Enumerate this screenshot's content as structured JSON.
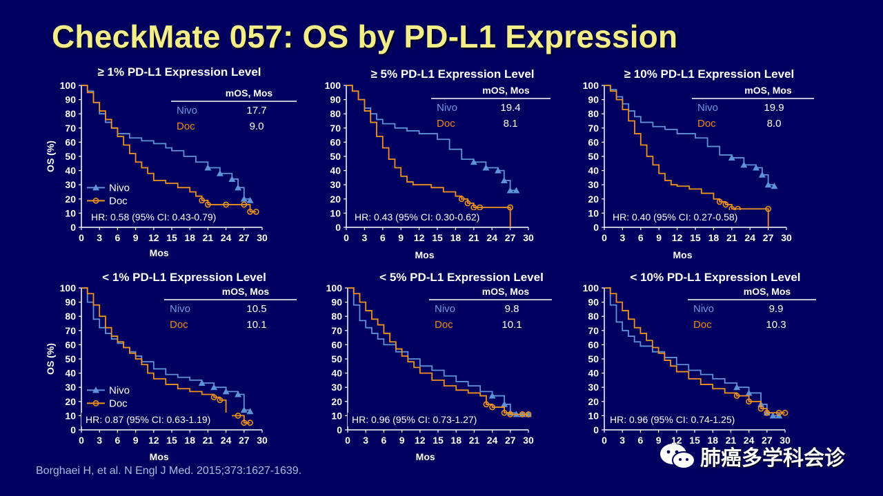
{
  "title": "CheckMate 057: OS by PD-L1 Expression",
  "citation": "Borghaei H, et al. N Engl J Med. 2015;373:1627-1639.",
  "watermark": {
    "text": "肺癌多学科会诊",
    "icon": "wechat-icon"
  },
  "colors": {
    "background": "#00005f",
    "title": "#f4ee8a",
    "nivo": "#5f93d6",
    "doc": "#f0921e",
    "table_nivo": "#6f9ae0",
    "table_doc": "#f08a1a"
  },
  "chart_data": [
    {
      "type": "line",
      "title": "≥ 1% PD-L1 Expression Level",
      "xlabel": "Mos",
      "ylabel": "OS (%)",
      "xlim": [
        0,
        30
      ],
      "ylim": [
        0,
        100
      ],
      "xticks": [
        0,
        3,
        6,
        9,
        12,
        15,
        18,
        21,
        24,
        27,
        30
      ],
      "yticks": [
        0,
        10,
        20,
        30,
        40,
        50,
        60,
        70,
        80,
        90,
        100
      ],
      "legend": {
        "show": true,
        "placement": "lower-left"
      },
      "table": {
        "header": "mOS, Mos",
        "rows": [
          {
            "label": "Nivo",
            "value": "17.7"
          },
          {
            "label": "Doc",
            "value": "9.0"
          }
        ]
      },
      "hr": "HR: 0.58 (95% CI: 0.43-0.79)",
      "series": [
        {
          "name": "Nivo",
          "color": "#5f93d6",
          "marker": "triangle",
          "x": [
            0,
            1,
            2,
            3,
            4,
            5,
            6,
            8,
            10,
            12,
            14,
            15,
            17,
            19,
            21,
            23,
            25,
            26,
            27,
            28
          ],
          "y": [
            100,
            96,
            88,
            80,
            74,
            70,
            66,
            63,
            61,
            59,
            56,
            54,
            50,
            46,
            42,
            38,
            34,
            28,
            20,
            19
          ]
        },
        {
          "name": "Doc",
          "color": "#f0921e",
          "marker": "circle",
          "x": [
            0,
            1,
            2,
            3,
            4,
            5,
            6,
            7,
            8,
            9,
            10,
            11,
            12,
            14,
            16,
            18,
            19,
            20,
            21,
            24,
            27,
            28,
            29
          ],
          "y": [
            100,
            95,
            88,
            82,
            76,
            70,
            64,
            58,
            52,
            46,
            42,
            38,
            33,
            31,
            28,
            25,
            22,
            19,
            16,
            16,
            16,
            11,
            11
          ]
        }
      ]
    },
    {
      "type": "line",
      "title": "≥ 5% PD-L1 Expression Level",
      "xlabel": "Mos",
      "ylabel": "",
      "xlim": [
        0,
        30
      ],
      "ylim": [
        0,
        100
      ],
      "xticks": [
        0,
        3,
        6,
        9,
        12,
        15,
        18,
        21,
        24,
        27,
        30
      ],
      "yticks": [
        0,
        10,
        20,
        30,
        40,
        50,
        60,
        70,
        80,
        90,
        100
      ],
      "legend": {
        "show": false
      },
      "table": {
        "header": "mOS, Mos",
        "rows": [
          {
            "label": "Nivo",
            "value": "19.4"
          },
          {
            "label": "Doc",
            "value": "8.1"
          }
        ]
      },
      "hr": "HR: 0.43 (95% CI: 0.30-0.62)",
      "series": [
        {
          "name": "Nivo",
          "color": "#5f93d6",
          "marker": "triangle",
          "x": [
            0,
            1,
            2,
            3,
            4,
            5,
            6,
            8,
            10,
            12,
            15,
            17,
            19,
            21,
            23,
            25,
            26,
            27,
            28
          ],
          "y": [
            100,
            96,
            90,
            84,
            80,
            76,
            73,
            70,
            68,
            66,
            62,
            55,
            48,
            46,
            42,
            40,
            33,
            26,
            26
          ]
        },
        {
          "name": "Doc",
          "color": "#f0921e",
          "marker": "circle",
          "x": [
            0,
            1,
            2,
            3,
            4,
            5,
            6,
            7,
            8,
            9,
            10,
            11,
            12,
            14,
            16,
            18,
            19,
            20,
            21,
            22,
            27,
            27.01
          ],
          "y": [
            100,
            96,
            90,
            82,
            74,
            64,
            56,
            48,
            42,
            36,
            32,
            30,
            30,
            28,
            25,
            22,
            20,
            17,
            14,
            14,
            14,
            0
          ]
        }
      ]
    },
    {
      "type": "line",
      "title": "≥ 10% PD-L1 Expression Level",
      "xlabel": "Mos",
      "ylabel": "",
      "xlim": [
        0,
        30
      ],
      "ylim": [
        0,
        100
      ],
      "xticks": [
        0,
        3,
        6,
        9,
        12,
        15,
        18,
        21,
        24,
        27,
        30
      ],
      "yticks": [
        0,
        10,
        20,
        30,
        40,
        50,
        60,
        70,
        80,
        90,
        100
      ],
      "legend": {
        "show": false
      },
      "table": {
        "header": "mOS, Mos",
        "rows": [
          {
            "label": "Nivo",
            "value": "19.9"
          },
          {
            "label": "Doc",
            "value": "8.0"
          }
        ]
      },
      "hr": "HR: 0.40 (95% CI: 0.27-0.58)",
      "series": [
        {
          "name": "Nivo",
          "color": "#5f93d6",
          "marker": "triangle",
          "x": [
            0,
            1,
            2,
            3,
            4,
            5,
            6,
            8,
            10,
            12,
            15,
            17,
            19,
            21,
            23,
            25,
            26,
            27,
            28
          ],
          "y": [
            100,
            97,
            92,
            87,
            82,
            78,
            74,
            71,
            69,
            66,
            63,
            57,
            51,
            49,
            44,
            42,
            37,
            30,
            29
          ]
        },
        {
          "name": "Doc",
          "color": "#f0921e",
          "marker": "circle",
          "x": [
            0,
            1,
            2,
            3,
            4,
            5,
            6,
            7,
            8,
            9,
            10,
            11,
            12,
            14,
            16,
            18,
            19,
            20,
            21,
            22,
            27,
            27.01
          ],
          "y": [
            100,
            96,
            90,
            83,
            75,
            66,
            58,
            50,
            44,
            38,
            33,
            30,
            29,
            27,
            24,
            20,
            18,
            16,
            13,
            13,
            13,
            0
          ]
        }
      ]
    },
    {
      "type": "line",
      "title": "< 1% PD-L1 Expression Level",
      "xlabel": "Mos",
      "ylabel": "OS (%)",
      "xlim": [
        0,
        30
      ],
      "ylim": [
        0,
        100
      ],
      "xticks": [
        0,
        3,
        6,
        9,
        12,
        15,
        18,
        21,
        24,
        27,
        30
      ],
      "yticks": [
        0,
        10,
        20,
        30,
        40,
        50,
        60,
        70,
        80,
        90,
        100
      ],
      "legend": {
        "show": true,
        "placement": "lower-left"
      },
      "table": {
        "header": "mOS, Mos",
        "rows": [
          {
            "label": "Nivo",
            "value": "10.5"
          },
          {
            "label": "Doc",
            "value": "10.1"
          }
        ]
      },
      "hr": "HR: 0.87 (95% CI: 0.63-1.19)",
      "series": [
        {
          "name": "Nivo",
          "color": "#5f93d6",
          "marker": "triangle",
          "x": [
            0,
            1,
            2,
            3,
            4,
            5,
            6,
            7,
            8,
            9,
            10,
            12,
            14,
            16,
            18,
            20,
            22,
            24,
            26,
            27,
            28
          ],
          "y": [
            100,
            90,
            78,
            72,
            68,
            64,
            61,
            58,
            55,
            52,
            48,
            43,
            39,
            37,
            35,
            33,
            30,
            27,
            25,
            14,
            13
          ]
        },
        {
          "name": "Doc",
          "color": "#f0921e",
          "marker": "circle",
          "x": [
            0,
            1,
            2,
            3,
            4,
            5,
            6,
            7,
            8,
            9,
            10,
            11,
            12,
            14,
            16,
            18,
            20,
            22,
            23,
            24,
            26,
            27,
            28
          ],
          "y": [
            100,
            96,
            88,
            80,
            72,
            66,
            62,
            58,
            54,
            50,
            46,
            40,
            36,
            32,
            29,
            27,
            25,
            23,
            21,
            10,
            10,
            5,
            5
          ]
        }
      ]
    },
    {
      "type": "line",
      "title": "< 5% PD-L1 Expression Level",
      "xlabel": "Mos",
      "ylabel": "",
      "xlim": [
        0,
        30
      ],
      "ylim": [
        0,
        100
      ],
      "xticks": [
        0,
        3,
        6,
        9,
        12,
        15,
        18,
        21,
        24,
        27,
        30
      ],
      "yticks": [
        0,
        10,
        20,
        30,
        40,
        50,
        60,
        70,
        80,
        90,
        100
      ],
      "legend": {
        "show": false
      },
      "table": {
        "header": "mOS, Mos",
        "rows": [
          {
            "label": "Nivo",
            "value": "9.8"
          },
          {
            "label": "Doc",
            "value": "10.1"
          }
        ]
      },
      "hr": "HR: 0.96 (95% CI: 0.73-1.27)",
      "series": [
        {
          "name": "Nivo",
          "color": "#5f93d6",
          "marker": "triangle",
          "x": [
            0,
            1,
            2,
            3,
            4,
            5,
            6,
            8,
            10,
            12,
            14,
            16,
            18,
            20,
            22,
            24,
            26,
            27,
            28,
            29,
            30
          ],
          "y": [
            100,
            88,
            77,
            72,
            68,
            64,
            60,
            55,
            50,
            45,
            42,
            38,
            34,
            31,
            27,
            24,
            18,
            12,
            11,
            11,
            11
          ]
        },
        {
          "name": "Doc",
          "color": "#f0921e",
          "marker": "circle",
          "x": [
            0,
            1,
            2,
            3,
            4,
            5,
            6,
            7,
            8,
            9,
            10,
            11,
            12,
            14,
            16,
            18,
            20,
            22,
            23,
            24,
            26,
            27,
            29,
            30
          ],
          "y": [
            100,
            96,
            90,
            84,
            78,
            74,
            68,
            62,
            57,
            52,
            48,
            44,
            40,
            35,
            31,
            28,
            26,
            24,
            18,
            16,
            12,
            11,
            11,
            11
          ]
        }
      ]
    },
    {
      "type": "line",
      "title": "< 10% PD-L1 Expression Level",
      "xlabel": "Mos",
      "ylabel": "",
      "xlim": [
        0,
        30
      ],
      "ylim": [
        0,
        100
      ],
      "xticks": [
        0,
        3,
        6,
        9,
        12,
        15,
        18,
        21,
        24,
        27,
        30
      ],
      "yticks": [
        0,
        10,
        20,
        30,
        40,
        50,
        60,
        70,
        80,
        90,
        100
      ],
      "legend": {
        "show": false
      },
      "table": {
        "header": "mOS, Mos",
        "rows": [
          {
            "label": "Nivo",
            "value": "9.9"
          },
          {
            "label": "Doc",
            "value": "10.3"
          }
        ]
      },
      "hr": "HR: 0.96 (95% CI: 0.74-1.25)",
      "series": [
        {
          "name": "Nivo",
          "color": "#5f93d6",
          "marker": "triangle",
          "x": [
            0,
            1,
            2,
            3,
            4,
            5,
            6,
            8,
            10,
            12,
            14,
            16,
            18,
            20,
            22,
            24,
            26,
            27,
            28,
            29
          ],
          "y": [
            100,
            88,
            76,
            70,
            66,
            62,
            59,
            55,
            51,
            46,
            42,
            39,
            36,
            33,
            30,
            26,
            18,
            12,
            10,
            10
          ]
        },
        {
          "name": "Doc",
          "color": "#f0921e",
          "marker": "circle",
          "x": [
            0,
            1,
            2,
            3,
            4,
            5,
            6,
            7,
            8,
            9,
            10,
            11,
            12,
            14,
            16,
            18,
            20,
            22,
            24,
            26,
            27,
            29,
            30
          ],
          "y": [
            100,
            96,
            90,
            84,
            78,
            72,
            68,
            63,
            58,
            54,
            49,
            45,
            41,
            36,
            32,
            29,
            26,
            24,
            20,
            15,
            12,
            12,
            12
          ]
        }
      ]
    }
  ]
}
